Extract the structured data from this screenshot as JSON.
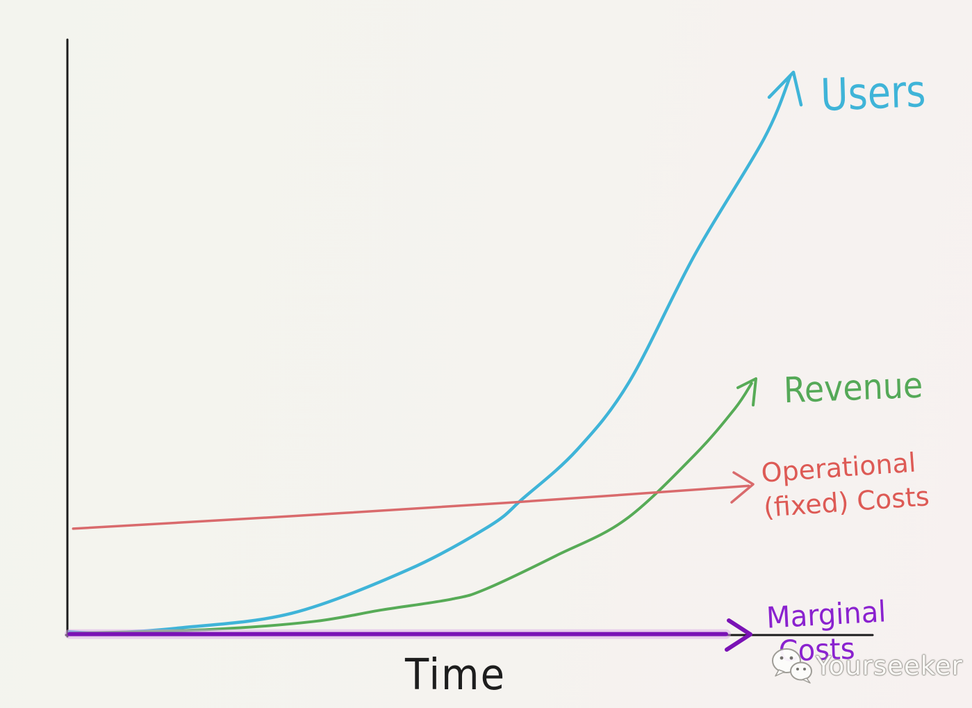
{
  "page": {
    "background_left": "#f3f4ee",
    "background_right": "#f7f1f0",
    "ink_color": "#1b1b1b"
  },
  "chart_data": {
    "type": "line",
    "style": "hand-drawn whiteboard sketch",
    "title": "",
    "xlabel": "Time",
    "ylabel": "",
    "grid": false,
    "legend": "inline-arrow-annotations",
    "x_axis": {
      "ticks": [],
      "range": [
        0,
        1
      ],
      "label": "Time"
    },
    "y_axis": {
      "ticks": [],
      "range": [
        0,
        100
      ],
      "label": ""
    },
    "series": [
      {
        "name": "Users",
        "color": "#3fb4d8",
        "width": 4.5,
        "arrow": true,
        "shape": "exponential growth",
        "points": [
          [
            0,
            0.7
          ],
          [
            0.05,
            0.5
          ],
          [
            0.152,
            1.4
          ],
          [
            0.305,
            4.0
          ],
          [
            0.464,
            11.7
          ],
          [
            0.576,
            19.5
          ],
          [
            0.622,
            24.4
          ],
          [
            0.695,
            32.9
          ],
          [
            0.767,
            45.0
          ],
          [
            0.857,
            67.6
          ],
          [
            0.952,
            88.2
          ],
          [
            0.988,
            99.3
          ]
        ]
      },
      {
        "name": "Revenue",
        "color": "#57ab57",
        "width": 4,
        "arrow": true,
        "shape": "exponential growth, lags Users",
        "points": [
          [
            0,
            0.45
          ],
          [
            0.19,
            1.1
          ],
          [
            0.333,
            2.5
          ],
          [
            0.429,
            4.6
          ],
          [
            0.524,
            6.5
          ],
          [
            0.571,
            8.3
          ],
          [
            0.667,
            14.2
          ],
          [
            0.762,
            20.6
          ],
          [
            0.857,
            32.1
          ],
          [
            0.912,
            40.3
          ],
          [
            0.935,
            44.8
          ]
        ]
      },
      {
        "name": "Operational (fixed) Costs",
        "color": "#d96a6c",
        "width": 3.5,
        "arrow": true,
        "shape": "nearly flat, slowly rising line",
        "points": [
          [
            0.005,
            19.0
          ],
          [
            0.3,
            21.2
          ],
          [
            0.6,
            23.6
          ],
          [
            0.931,
            26.6
          ]
        ]
      },
      {
        "name": "Marginal Costs",
        "color": "#7a12b5",
        "halo": "#d9a7e8",
        "width": 6,
        "arrow": true,
        "shape": "flat at zero along x-axis",
        "points": [
          [
            0,
            0.3
          ],
          [
            0.45,
            0.3
          ],
          [
            0.9,
            0.3
          ]
        ]
      }
    ]
  },
  "labels": {
    "users": "Users",
    "revenue": "Revenue",
    "operational_line1": "Operational",
    "operational_line2": "(fixed) Costs",
    "marginal_line1": "Marginal",
    "marginal_line2": "Costs",
    "time": "Time"
  },
  "watermark": {
    "text": "Yourseeker",
    "icon": "wechat-chat-bubbles-icon"
  }
}
